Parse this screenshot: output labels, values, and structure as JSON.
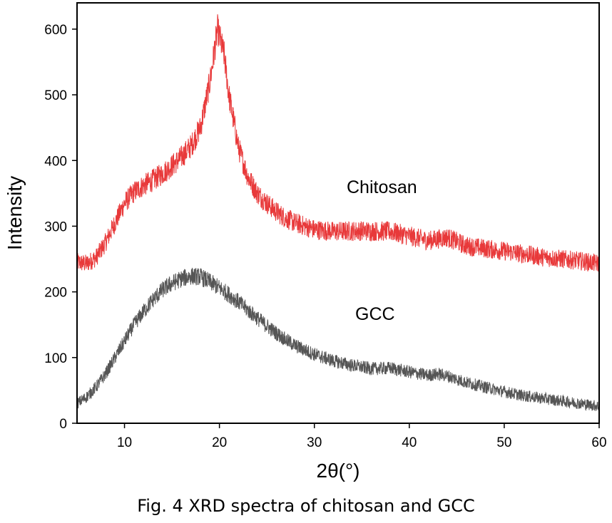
{
  "chart_data": {
    "type": "line",
    "xlabel": "2θ(°)",
    "ylabel": "Intensity",
    "xlim": [
      5,
      60
    ],
    "ylim": [
      0,
      640
    ],
    "xticks": [
      10,
      20,
      30,
      40,
      50,
      60
    ],
    "yticks": [
      0,
      100,
      200,
      300,
      400,
      500,
      600
    ],
    "grid": false,
    "series": [
      {
        "name": "Chitosan",
        "color": "#e8393a",
        "points": [
          [
            5,
            245
          ],
          [
            6,
            243
          ],
          [
            7,
            252
          ],
          [
            8,
            275
          ],
          [
            9,
            305
          ],
          [
            10,
            335
          ],
          [
            11,
            352
          ],
          [
            12,
            362
          ],
          [
            13,
            370
          ],
          [
            14,
            380
          ],
          [
            15,
            392
          ],
          [
            16,
            405
          ],
          [
            17,
            422
          ],
          [
            18,
            450
          ],
          [
            19,
            520
          ],
          [
            19.8,
            600
          ],
          [
            20.5,
            560
          ],
          [
            21,
            500
          ],
          [
            22,
            420
          ],
          [
            23,
            375
          ],
          [
            24,
            350
          ],
          [
            25,
            335
          ],
          [
            26,
            322
          ],
          [
            27,
            312
          ],
          [
            28,
            305
          ],
          [
            30,
            295
          ],
          [
            32,
            292
          ],
          [
            35,
            293
          ],
          [
            38,
            292
          ],
          [
            40,
            285
          ],
          [
            42,
            278
          ],
          [
            44,
            283
          ],
          [
            46,
            270
          ],
          [
            48,
            266
          ],
          [
            50,
            262
          ],
          [
            52,
            258
          ],
          [
            54,
            253
          ],
          [
            56,
            250
          ],
          [
            58,
            247
          ],
          [
            60,
            243
          ]
        ]
      },
      {
        "name": "GCC",
        "color": "#555555",
        "points": [
          [
            5,
            30
          ],
          [
            6,
            40
          ],
          [
            7,
            55
          ],
          [
            8,
            75
          ],
          [
            9,
            100
          ],
          [
            10,
            125
          ],
          [
            11,
            150
          ],
          [
            12,
            170
          ],
          [
            13,
            188
          ],
          [
            14,
            203
          ],
          [
            15,
            213
          ],
          [
            16,
            220
          ],
          [
            17,
            224
          ],
          [
            18,
            223
          ],
          [
            19,
            215
          ],
          [
            20,
            206
          ],
          [
            21,
            196
          ],
          [
            22,
            185
          ],
          [
            23,
            172
          ],
          [
            24,
            160
          ],
          [
            25,
            148
          ],
          [
            26,
            137
          ],
          [
            27,
            127
          ],
          [
            28,
            118
          ],
          [
            30,
            105
          ],
          [
            32,
            95
          ],
          [
            34,
            88
          ],
          [
            36,
            83
          ],
          [
            38,
            84
          ],
          [
            40,
            78
          ],
          [
            42,
            73
          ],
          [
            43,
            75
          ],
          [
            44,
            72
          ],
          [
            46,
            62
          ],
          [
            48,
            55
          ],
          [
            50,
            48
          ],
          [
            52,
            42
          ],
          [
            54,
            38
          ],
          [
            56,
            34
          ],
          [
            58,
            30
          ],
          [
            60,
            26
          ]
        ]
      }
    ]
  },
  "caption": "Fig. 4 XRD spectra of chitosan and GCC"
}
